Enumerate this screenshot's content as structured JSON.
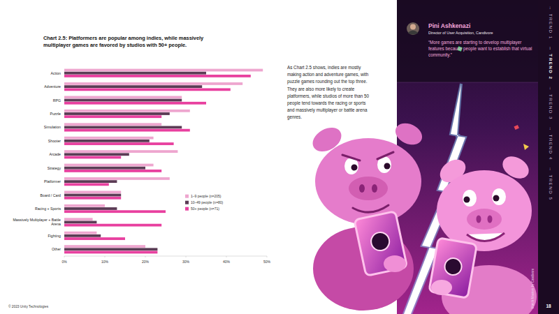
{
  "chart_data": {
    "type": "bar",
    "orientation": "horizontal",
    "title": "Chart 2.5: Platformers are popular among indies, while massively multiplayer games are favored by studios with 50+ people.",
    "categories": [
      "Action",
      "Adventure",
      "RPG",
      "Puzzle",
      "Simulation",
      "Shooter",
      "Arcade",
      "Strategy",
      "Platformer",
      "Board / Card",
      "Racing + Sports",
      "Massively Multiplayer + Battle Arena",
      "Fighting",
      "Other"
    ],
    "series": [
      {
        "name": "1–9 people (n=205)",
        "color": "#eea6cf",
        "values": [
          49,
          44,
          29,
          31,
          24,
          22,
          28,
          22,
          26,
          14,
          10,
          7,
          8,
          20
        ]
      },
      {
        "name": "10–49 people (n=80)",
        "color": "#5b3b55",
        "values": [
          35,
          34,
          29,
          26,
          29,
          21,
          16,
          20,
          13,
          14,
          13,
          8,
          9,
          23
        ]
      },
      {
        "name": "50+ people (n=71)",
        "color": "#e8409f",
        "values": [
          46,
          41,
          35,
          24,
          31,
          27,
          14,
          24,
          11,
          14,
          25,
          24,
          15,
          23
        ]
      }
    ],
    "xlim": [
      0,
      50
    ],
    "xticks": [
      {
        "value": 0,
        "label": "0%"
      },
      {
        "value": 10,
        "label": "10%"
      },
      {
        "value": 20,
        "label": "20%"
      },
      {
        "value": 30,
        "label": "30%"
      },
      {
        "value": 40,
        "label": "40%"
      },
      {
        "value": 50,
        "label": "50%"
      }
    ],
    "grid": false,
    "legend": "right"
  },
  "page": {
    "text": "As Chart 2.5 shows, indies are mostly making action and adventure games, with puzzle games rounding out the top three. They are also more likely to create platformers, while studios of more than 50 people tend towards the racing or sports and massively multiplayer or battle arena genres.",
    "quote": {
      "name": "Pini Ashkenazi",
      "role": "Director of User Acquisition, Candivore",
      "text": "“More games are starting to develop multiplayer features because people want to establish that virtual community.”"
    },
    "nav_separator": "→",
    "nav": [
      {
        "label": "TREND 1"
      },
      {
        "label": "TREND 2",
        "current": true
      },
      {
        "label": "TREND 3"
      },
      {
        "label": "TREND 4"
      },
      {
        "label": "TREND 5"
      }
    ],
    "credit": "Match Masters by Candivore",
    "footer": "© 2023 Unity Technologies",
    "page_number": 18
  }
}
